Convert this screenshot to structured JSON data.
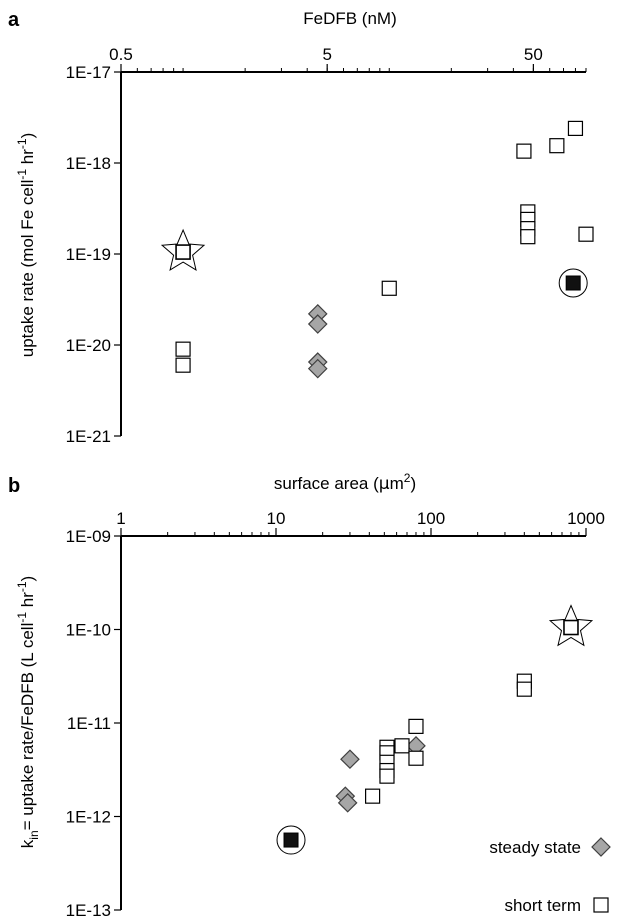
{
  "chart_data": [
    {
      "panel": "a",
      "type": "scatter",
      "xlabel": "FeDFB (nM)",
      "ylabel": "uptake rate (mol Fe cell^-1 hr^-1)",
      "xscale": "log",
      "yscale": "log",
      "xaxis_position": "top",
      "xlim": [
        0.5,
        90
      ],
      "ylim": [
        1e-21,
        1e-17
      ],
      "xticks": [
        0.5,
        5,
        50
      ],
      "xtick_labels": [
        "0.5",
        "5",
        "50"
      ],
      "yticks": [
        1e-21,
        1e-20,
        1e-19,
        1e-18,
        1e-17
      ],
      "ytick_labels": [
        "1E-21",
        "1E-20",
        "1E-19",
        "1E-18",
        "1E-17"
      ],
      "grid": false,
      "series": [
        {
          "name": "steady state",
          "marker": "diamond",
          "color": "#a6a6a6",
          "points": [
            {
              "x": 4.5,
              "y": 2.2e-20
            },
            {
              "x": 4.5,
              "y": 1.7e-20
            },
            {
              "x": 4.5,
              "y": 6.5e-21
            },
            {
              "x": 4.5,
              "y": 5.5e-21
            }
          ]
        },
        {
          "name": "short term",
          "marker": "square-open",
          "color": "#ffffff",
          "points": [
            {
              "x": 1.0,
              "y": 9e-21
            },
            {
              "x": 1.0,
              "y": 6e-21
            },
            {
              "x": 10,
              "y": 4.2e-20
            },
            {
              "x": 45,
              "y": 1.35e-18
            },
            {
              "x": 47,
              "y": 2.9e-19
            },
            {
              "x": 47,
              "y": 2.4e-19
            },
            {
              "x": 47,
              "y": 1.9e-19
            },
            {
              "x": 47,
              "y": 1.55e-19
            },
            {
              "x": 65,
              "y": 1.55e-18
            },
            {
              "x": 80,
              "y": 2.4e-18
            },
            {
              "x": 90,
              "y": 1.65e-19
            }
          ]
        },
        {
          "name": "short term (highlighted, star)",
          "marker": "square-open-star",
          "points": [
            {
              "x": 1.0,
              "y": 1.05e-19
            }
          ]
        },
        {
          "name": "short term (highlighted, circle)",
          "marker": "square-filled-circle",
          "color": "#111111",
          "points": [
            {
              "x": 78,
              "y": 4.8e-20
            }
          ]
        }
      ]
    },
    {
      "panel": "b",
      "type": "scatter",
      "xlabel": "surface area (µm²)",
      "ylabel": "kin= uptake rate/FeDFB (L cell^-1 hr^-1)",
      "xscale": "log",
      "yscale": "log",
      "xaxis_position": "top",
      "xlim": [
        1,
        1000
      ],
      "ylim": [
        1e-13,
        1e-09
      ],
      "xticks": [
        1,
        10,
        100,
        1000
      ],
      "xtick_labels": [
        "1",
        "10",
        "100",
        "1000"
      ],
      "yticks": [
        1e-13,
        1e-12,
        1e-11,
        1e-10,
        1e-09
      ],
      "ytick_labels": [
        "1E-13",
        "1E-12",
        "1E-11",
        "1E-10",
        "1E-09"
      ],
      "grid": false,
      "legend_position": "bottom-right",
      "series": [
        {
          "name": "steady state",
          "marker": "diamond",
          "color": "#a6a6a6",
          "points": [
            {
              "x": 30,
              "y": 4.1e-12
            },
            {
              "x": 28,
              "y": 1.65e-12
            },
            {
              "x": 29,
              "y": 1.4e-12
            },
            {
              "x": 80,
              "y": 5.7e-12
            }
          ]
        },
        {
          "name": "short term",
          "marker": "square-open",
          "color": "#ffffff",
          "points": [
            {
              "x": 52,
              "y": 5.5e-12
            },
            {
              "x": 52,
              "y": 4.8e-12
            },
            {
              "x": 52,
              "y": 3.8e-12
            },
            {
              "x": 52,
              "y": 3.1e-12
            },
            {
              "x": 52,
              "y": 2.7e-12
            },
            {
              "x": 42,
              "y": 1.65e-12
            },
            {
              "x": 65,
              "y": 5.7e-12
            },
            {
              "x": 80,
              "y": 9.2e-12
            },
            {
              "x": 80,
              "y": 4.2e-12
            },
            {
              "x": 400,
              "y": 2.8e-11
            },
            {
              "x": 400,
              "y": 2.3e-11
            }
          ]
        },
        {
          "name": "short term (highlighted, star)",
          "marker": "square-open-star",
          "points": [
            {
              "x": 800,
              "y": 1.05e-10
            }
          ]
        },
        {
          "name": "short term (highlighted, circle)",
          "marker": "square-filled-circle",
          "color": "#111111",
          "points": [
            {
              "x": 12.5,
              "y": 5.6e-13
            }
          ]
        }
      ]
    }
  ],
  "panels": {
    "a": {
      "label": "a",
      "xlabel": "FeDFB (nM)",
      "ylabel_parts": [
        "uptake rate (mol Fe cell",
        "-1",
        " hr",
        "-1",
        ")"
      ]
    },
    "b": {
      "label": "b",
      "xlabel_parts": [
        "surface area (",
        "µ",
        "m",
        "2",
        ")"
      ],
      "ylabel_parts": [
        "k",
        "in",
        "= uptake rate/FeDFB (L cell",
        "-1",
        " hr",
        "-1",
        ")"
      ],
      "legend": {
        "steady_state_label": "steady state",
        "short_term_label": "short term"
      }
    }
  }
}
